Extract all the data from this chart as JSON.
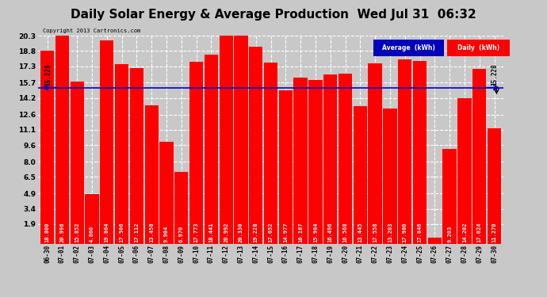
{
  "title": "Daily Solar Energy & Average Production  Wed Jul 31  06:32",
  "copyright": "Copyright 2013 Cartronics.com",
  "categories": [
    "06-30",
    "07-01",
    "07-02",
    "07-03",
    "07-04",
    "07-05",
    "07-06",
    "07-07",
    "07-08",
    "07-09",
    "07-10",
    "07-11",
    "07-12",
    "07-13",
    "07-14",
    "07-15",
    "07-16",
    "07-17",
    "07-18",
    "07-19",
    "07-20",
    "07-21",
    "07-22",
    "07-23",
    "07-24",
    "07-25",
    "07-26",
    "07-27",
    "07-28",
    "07-29",
    "07-30"
  ],
  "values": [
    18.8,
    20.996,
    15.852,
    4.86,
    19.864,
    17.506,
    17.112,
    13.458,
    9.904,
    6.97,
    17.773,
    18.441,
    20.992,
    20.33,
    19.228,
    17.652,
    14.977,
    16.187,
    15.984,
    16.496,
    16.568,
    13.445,
    17.558,
    13.203,
    17.98,
    17.846,
    0.589,
    9.203,
    14.202,
    17.024,
    11.27
  ],
  "average": 15.228,
  "bar_color": "#ff0000",
  "average_line_color": "#0000cc",
  "ylim": [
    0,
    20.3
  ],
  "yticks": [
    1.9,
    3.4,
    4.9,
    6.5,
    8.0,
    9.6,
    11.1,
    12.6,
    14.2,
    15.7,
    17.3,
    18.8,
    20.3
  ],
  "bg_color": "#c8c8c8",
  "plot_bg_color": "#c8c8c8",
  "title_fontsize": 11,
  "label_fontsize": 5.5,
  "bar_label_fontsize": 5.0,
  "average_label": "15.228",
  "legend_avg_color": "#0000bb",
  "legend_daily_color": "#ff0000",
  "legend_avg_text": "Average  (kWh)",
  "legend_daily_text": "Daily  (kWh)"
}
